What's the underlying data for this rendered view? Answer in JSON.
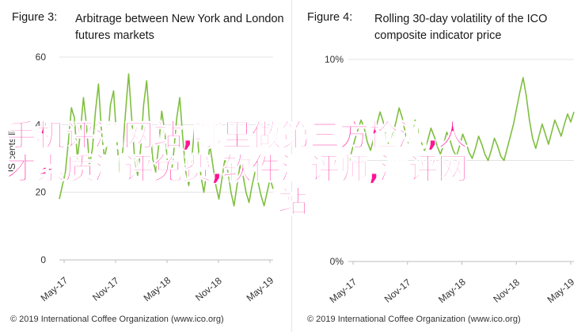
{
  "panels": [
    {
      "figure_label": "Figure 3:",
      "title": "Arbitrage between New York and London futures markets",
      "ylabel": "US cents/lb",
      "copyright": "© 2019 International Coffee Organization (www.ico.org)"
    },
    {
      "figure_label": "Figure 4:",
      "title": "Rolling 30-day volatility of the ICO composite indicator price",
      "copyright": "© 2019 International Coffee Organization (www.ico.org)"
    }
  ],
  "overlay": {
    "line1": "手机评测网站,哪里做第三方检测,人",
    "line2": "才素质测评免费,软件测评师,测评网",
    "line3": "站"
  },
  "colors": {
    "line": "#7fbf3f",
    "axis": "#bdbdbd",
    "grid": "#e3e3e3",
    "overlay": "#ff1493"
  },
  "chart_data": [
    {
      "type": "line",
      "ylim": [
        0,
        60
      ],
      "yticks": [
        0,
        20,
        40,
        60
      ],
      "x_tick_labels": [
        "May-17",
        "Nov-17",
        "May-18",
        "Nov-18",
        "May-19"
      ],
      "grid": true,
      "series": [
        {
          "values": [
            18,
            22,
            26,
            35,
            45,
            42,
            30,
            38,
            48,
            40,
            28,
            33,
            44,
            52,
            38,
            30,
            35,
            46,
            50,
            36,
            26,
            32,
            44,
            55,
            42,
            30,
            25,
            33,
            46,
            53,
            40,
            30,
            26,
            34,
            44,
            38,
            28,
            24,
            32,
            42,
            48,
            36,
            26,
            22,
            30,
            40,
            35,
            25,
            20,
            26,
            34,
            28,
            22,
            18,
            24,
            30,
            26,
            20,
            16,
            22,
            28,
            25,
            20,
            17,
            22,
            26,
            23,
            19,
            16,
            20,
            24,
            21
          ]
        }
      ]
    },
    {
      "type": "line",
      "ylim": [
        0,
        10
      ],
      "yticks": [
        0,
        5,
        10
      ],
      "ytick_labels": [
        "0%",
        "",
        "10%"
      ],
      "x_tick_labels": [
        "May-17",
        "Nov-17",
        "May-18",
        "Nov-18",
        "May-19"
      ],
      "grid": true,
      "series": [
        {
          "values": [
            4.8,
            5.4,
            6.0,
            6.5,
            7.0,
            6.6,
            5.9,
            5.5,
            6.1,
            6.8,
            7.4,
            6.9,
            6.1,
            5.7,
            6.3,
            6.9,
            7.6,
            7.1,
            6.3,
            5.8,
            6.3,
            7.0,
            6.5,
            5.9,
            5.5,
            6.0,
            6.6,
            6.2,
            5.7,
            5.3,
            5.8,
            6.4,
            6.0,
            5.5,
            5.2,
            5.7,
            6.3,
            5.9,
            5.4,
            5.1,
            5.6,
            6.2,
            5.8,
            5.3,
            5.0,
            5.5,
            6.1,
            5.7,
            5.2,
            5.0,
            5.6,
            6.2,
            6.8,
            7.6,
            8.4,
            9.1,
            8.2,
            7.0,
            6.1,
            5.6,
            6.2,
            6.8,
            6.3,
            5.8,
            6.4,
            7.0,
            6.6,
            6.2,
            6.8,
            7.3,
            6.9,
            7.4
          ]
        }
      ]
    }
  ]
}
